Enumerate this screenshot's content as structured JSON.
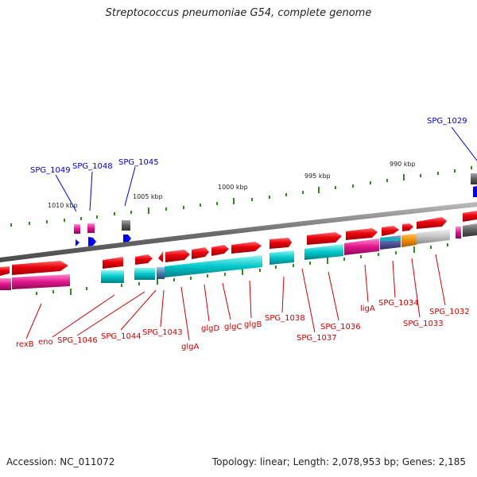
{
  "title": "Streptococcus pneumoniae G54, complete genome",
  "footer": {
    "accession": "Accession: NC_011072",
    "summary": "Topology: linear; Length: 2,078,953 bp; Genes: 2,185"
  },
  "scale_labels": [
    "1010 kbp",
    "1005 kbp",
    "1000 kbp",
    "995 kbp",
    "990 kbp"
  ],
  "upper_labels": [
    "SPG_1049",
    "SPG_1048",
    "SPG_1045",
    "SPG_1029"
  ],
  "lower_labels": [
    "rexB",
    "eno",
    "SPG_1046",
    "SPG_1044",
    "SPG_1043",
    "glgA",
    "glgD",
    "glgC",
    "glgB",
    "SPG_1038",
    "SPG_1037",
    "SPG_1036",
    "ligA",
    "SPG_1034",
    "SPG_1033",
    "SPG_1032"
  ],
  "colors": {
    "forward_gene": "#e8000b",
    "function_cyan": "#00c8cc",
    "function_magenta": "#e0148c",
    "backbone": "#808080",
    "upper_label": "#0000cc",
    "lower_label": "#cc0000",
    "tick": "#2e8b1e"
  }
}
